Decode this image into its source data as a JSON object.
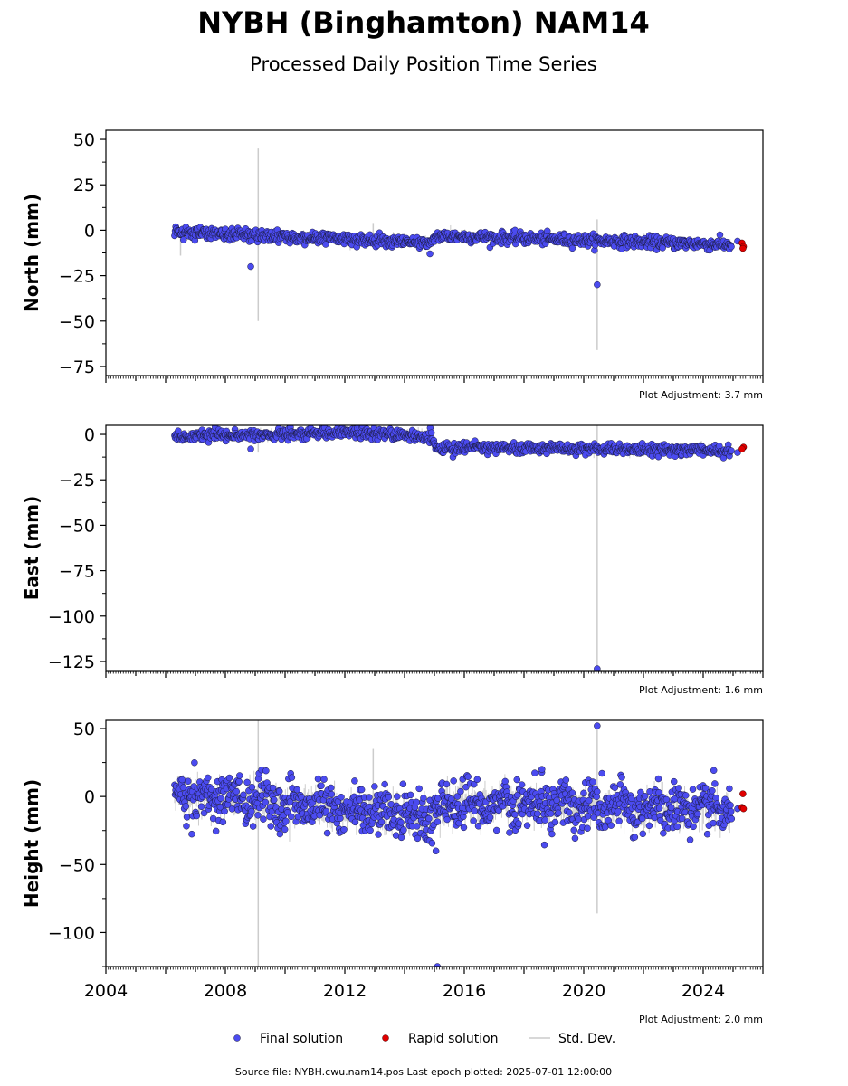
{
  "figure": {
    "title": "NYBH (Binghamton) NAM14",
    "subtitle": "Processed Daily Position Time Series",
    "source_note": "Source file: NYBH.cwu.nam14.pos  Last epoch plotted: 2025-07-01 12:00:00",
    "legend": [
      {
        "label": "Final solution",
        "kind": "dot",
        "color": "#4b4bf0"
      },
      {
        "label": "Rapid solution",
        "kind": "dot",
        "color": "#e00000"
      },
      {
        "label": "Std. Dev.",
        "kind": "line",
        "color": "#cccccc"
      }
    ],
    "colors": {
      "final": "#4b4bf0",
      "final_edge": "#1a1a3a",
      "rapid": "#e00000",
      "stddev": "#cccccc"
    }
  },
  "chart_data": [
    {
      "type": "scatter",
      "panel": "north",
      "ylabel": "North (mm)",
      "adjustment_label": "Plot Adjustment: 3.7 mm",
      "xlim": [
        2004.0,
        2026.0
      ],
      "ylim": [
        -80,
        55
      ],
      "yticks": [
        50,
        25,
        0,
        -25,
        -50,
        -75
      ],
      "show_xticklabels": false,
      "trend": [
        [
          2006.3,
          -1
        ],
        [
          2014.9,
          -7
        ],
        [
          2015.05,
          -3
        ],
        [
          2024.95,
          -8
        ]
      ],
      "noise": 1.6,
      "final_start": 2006.3,
      "final_end": 2024.95,
      "outliers": [
        {
          "x": 2008.85,
          "y": -20
        },
        {
          "x": 2020.45,
          "y": -30
        },
        {
          "x": 2014.85,
          "y": -13
        }
      ],
      "error_bars": [
        {
          "x": 2009.1,
          "y1": -50,
          "y2": 45
        },
        {
          "x": 2020.45,
          "y1": -66,
          "y2": 6
        },
        {
          "x": 2012.95,
          "y1": -8,
          "y2": 4
        },
        {
          "x": 2006.5,
          "y1": -14,
          "y2": 2
        }
      ],
      "rapid": [
        {
          "x": 2025.3,
          "y": -7
        },
        {
          "x": 2025.35,
          "y": -9
        },
        {
          "x": 2025.33,
          "y": -10
        }
      ],
      "extra_final": [
        {
          "x": 2025.15,
          "y": -6
        }
      ]
    },
    {
      "type": "scatter",
      "panel": "east",
      "ylabel": "East (mm)",
      "adjustment_label": "Plot Adjustment: 1.6 mm",
      "xlim": [
        2004.0,
        2026.0
      ],
      "ylim": [
        -130,
        5
      ],
      "yticks": [
        0,
        -25,
        -50,
        -75,
        -100,
        -125
      ],
      "show_xticklabels": false,
      "trend": [
        [
          2006.3,
          -1
        ],
        [
          2012.5,
          1
        ],
        [
          2014.9,
          -1
        ],
        [
          2015.05,
          -7
        ],
        [
          2024.95,
          -9
        ]
      ],
      "noise": 1.5,
      "final_start": 2006.3,
      "final_end": 2024.95,
      "outliers": [
        {
          "x": 2008.85,
          "y": -8
        },
        {
          "x": 2020.45,
          "y": -129
        }
      ],
      "error_bars": [
        {
          "x": 2020.45,
          "y1": -129,
          "y2": 5
        },
        {
          "x": 2009.1,
          "y1": -10,
          "y2": 2
        }
      ],
      "rapid": [
        {
          "x": 2025.35,
          "y": -7
        },
        {
          "x": 2025.3,
          "y": -8
        }
      ],
      "extra_final": [
        {
          "x": 2025.15,
          "y": -10
        }
      ]
    },
    {
      "type": "scatter",
      "panel": "height",
      "ylabel": "Height (mm)",
      "adjustment_label": "Plot Adjustment: 2.0 mm",
      "xlim": [
        2004.0,
        2026.0
      ],
      "ylim": [
        -125,
        56
      ],
      "yticks": [
        50,
        0,
        -50,
        -100
      ],
      "xticks": [
        2004,
        2008,
        2012,
        2016,
        2020,
        2024
      ],
      "show_xticklabels": true,
      "trend": [
        [
          2006.3,
          2
        ],
        [
          2014.9,
          -15
        ],
        [
          2015.5,
          -5
        ],
        [
          2024.95,
          -10
        ]
      ],
      "noise": 9,
      "final_start": 2006.3,
      "final_end": 2024.95,
      "outliers": [
        {
          "x": 2020.45,
          "y": 52
        },
        {
          "x": 2015.1,
          "y": -125
        },
        {
          "x": 2015.05,
          "y": -40
        },
        {
          "x": 2018.6,
          "y": 20
        }
      ],
      "error_bars": [
        {
          "x": 2009.1,
          "y1": -125,
          "y2": 56
        },
        {
          "x": 2020.45,
          "y1": -86,
          "y2": 52
        },
        {
          "x": 2012.95,
          "y1": -15,
          "y2": 35
        }
      ],
      "rapid": [
        {
          "x": 2025.33,
          "y": 2
        },
        {
          "x": 2025.3,
          "y": -8
        },
        {
          "x": 2025.35,
          "y": -9
        }
      ],
      "extra_final": [
        {
          "x": 2025.15,
          "y": -9
        }
      ]
    }
  ]
}
